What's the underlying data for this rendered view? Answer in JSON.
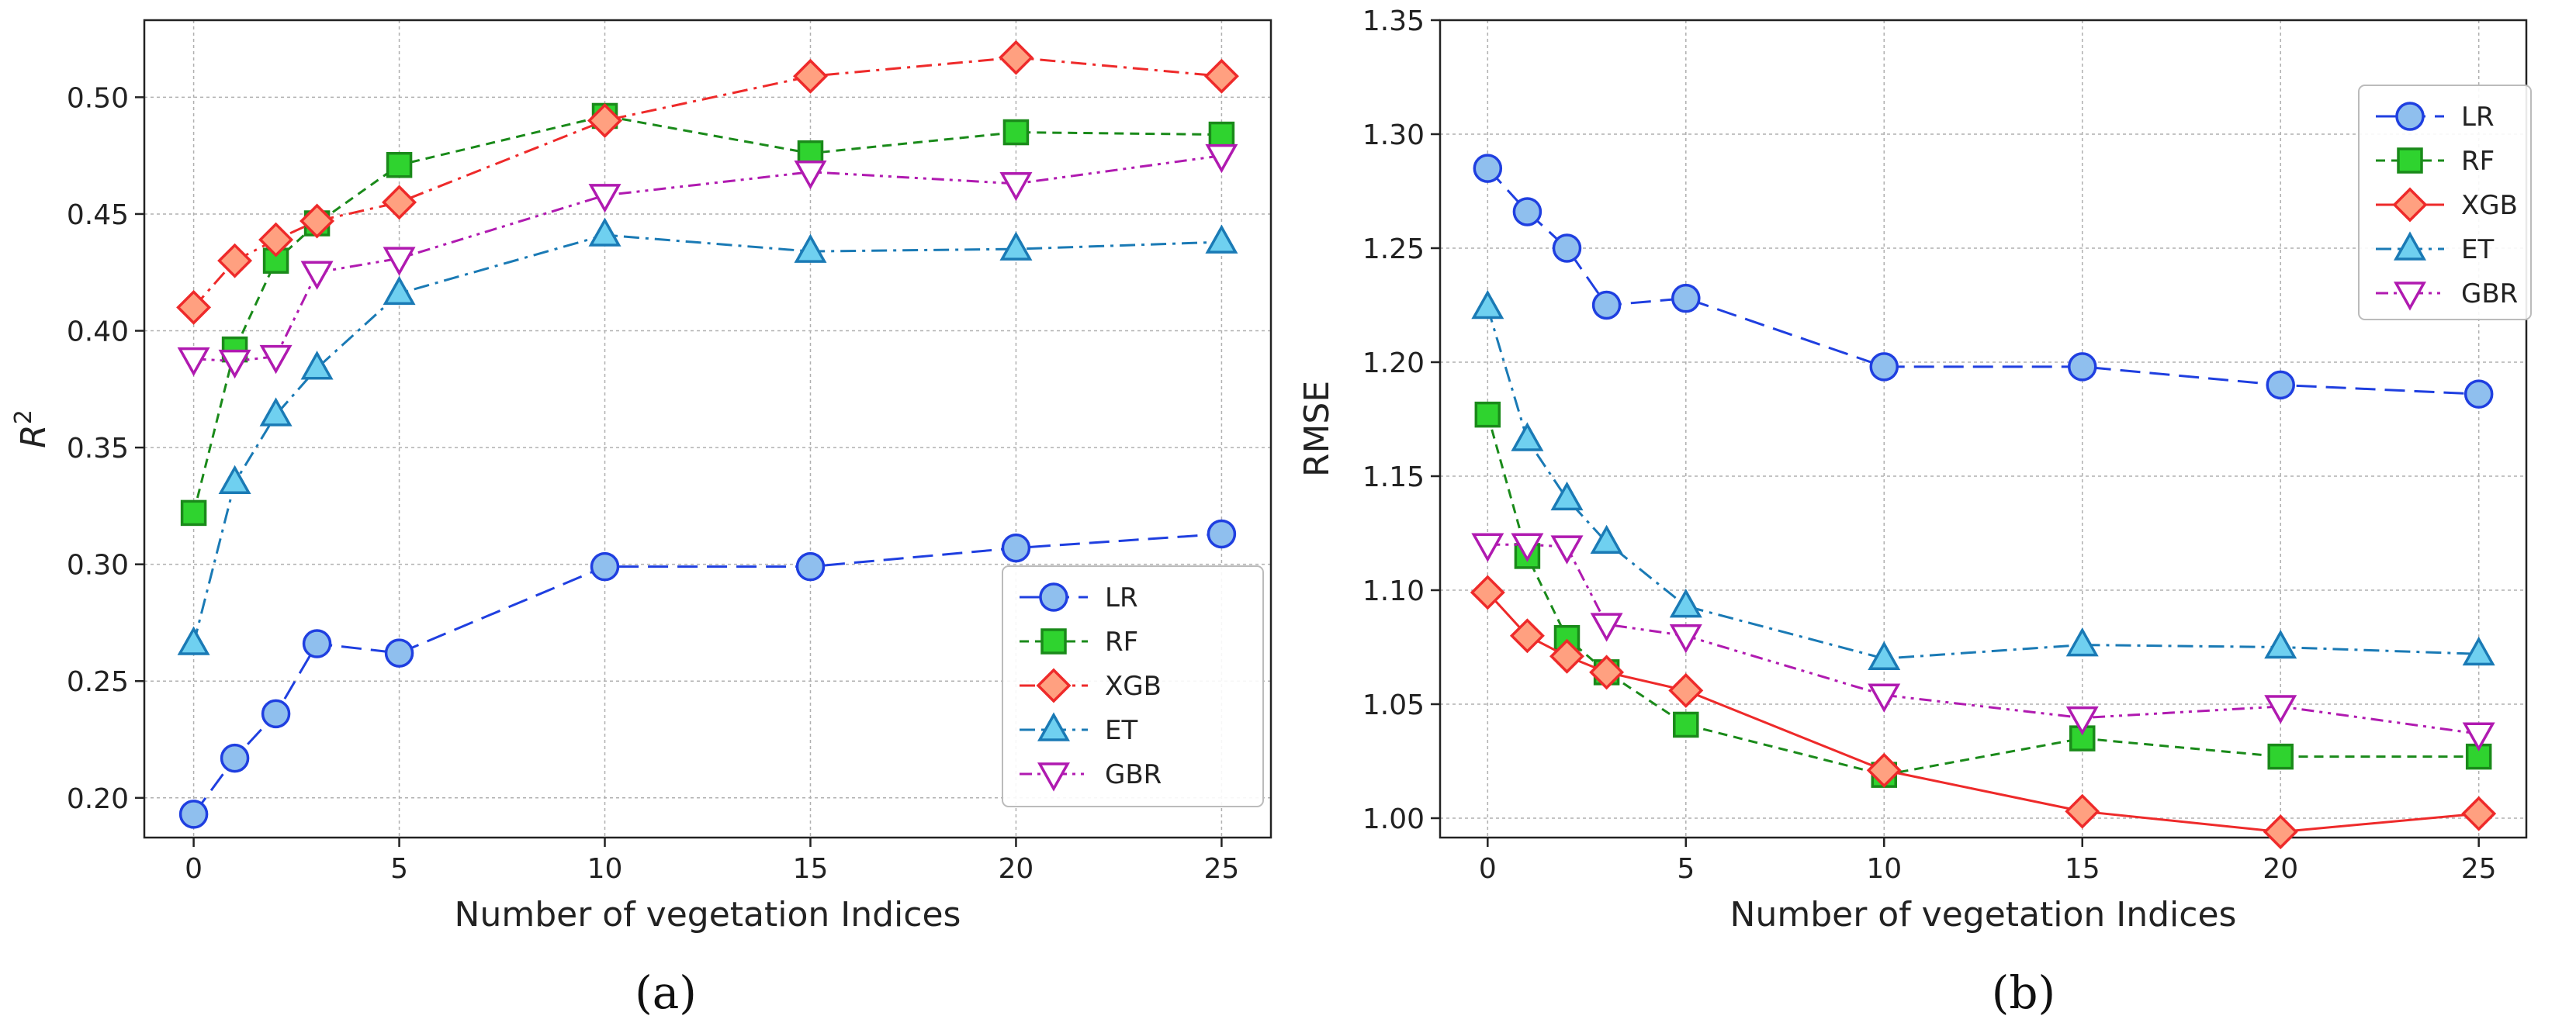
{
  "chart_data": [
    {
      "type": "line",
      "panel_label": "(a)",
      "xlabel": "Number of vegetation Indices",
      "ylabel": "R",
      "ylabel_superscript": "2",
      "x": [
        0,
        1,
        2,
        3,
        5,
        10,
        15,
        20,
        25
      ],
      "xticks": [
        "0",
        "5",
        "10",
        "15",
        "20",
        "25"
      ],
      "xlim": [
        -1.2,
        26.2
      ],
      "yticks": [
        "0.20",
        "0.25",
        "0.30",
        "0.35",
        "0.40",
        "0.45",
        "0.50"
      ],
      "ylim": [
        0.183,
        0.533
      ],
      "grid": true,
      "legend_position": "lower-right",
      "series": [
        {
          "name": "LR",
          "marker": "circle",
          "color": "#1f3fe0",
          "fill": "#8fbfee",
          "dash": "long-dash",
          "values": [
            0.193,
            0.217,
            0.236,
            0.266,
            0.262,
            0.299,
            0.299,
            0.307,
            0.313
          ]
        },
        {
          "name": "RF",
          "marker": "square",
          "color": "#1a8a1a",
          "fill": "#2fd32f",
          "dash": "dashed",
          "values": [
            0.322,
            0.392,
            0.43,
            0.446,
            0.471,
            0.492,
            0.476,
            0.485,
            0.484
          ]
        },
        {
          "name": "XGB",
          "marker": "diamond",
          "color": "#ee2a2a",
          "fill": "#ffa080",
          "dash": "dash-dot",
          "values": [
            0.41,
            0.43,
            0.439,
            0.447,
            0.455,
            0.49,
            0.509,
            0.517,
            0.509
          ]
        },
        {
          "name": "ET",
          "marker": "triangle-up",
          "color": "#1a7ab5",
          "fill": "#6fd0f0",
          "dash": "dash-dot",
          "values": [
            0.266,
            0.335,
            0.364,
            0.384,
            0.416,
            0.441,
            0.434,
            0.435,
            0.438
          ]
        },
        {
          "name": "GBR",
          "marker": "triangle-down",
          "color": "#b01ab0",
          "fill": "#ffffff",
          "dash": "dash-dot-dot",
          "values": [
            0.388,
            0.387,
            0.389,
            0.425,
            0.431,
            0.458,
            0.468,
            0.463,
            0.475
          ]
        }
      ]
    },
    {
      "type": "line",
      "panel_label": "(b)",
      "xlabel": "Number of vegetation Indices",
      "ylabel": "RMSE",
      "x": [
        0,
        1,
        2,
        3,
        5,
        10,
        15,
        20,
        25
      ],
      "xticks": [
        "0",
        "5",
        "10",
        "15",
        "20",
        "25"
      ],
      "xlim": [
        -1.2,
        26.2
      ],
      "yticks": [
        "1.00",
        "1.05",
        "1.10",
        "1.15",
        "1.20",
        "1.25",
        "1.30",
        "1.35"
      ],
      "ylim": [
        0.9915,
        1.35
      ],
      "grid": true,
      "legend_position": "upper-right",
      "series": [
        {
          "name": "LR",
          "marker": "circle",
          "color": "#1f3fe0",
          "fill": "#8fbfee",
          "dash": "long-dash",
          "values": [
            1.285,
            1.266,
            1.25,
            1.225,
            1.228,
            1.198,
            1.198,
            1.19,
            1.186
          ]
        },
        {
          "name": "RF",
          "marker": "square",
          "color": "#1a8a1a",
          "fill": "#2fd32f",
          "dash": "dashed",
          "values": [
            1.177,
            1.115,
            1.079,
            1.064,
            1.041,
            1.019,
            1.035,
            1.027,
            1.027
          ]
        },
        {
          "name": "XGB",
          "marker": "diamond",
          "color": "#ee2a2a",
          "fill": "#ffa080",
          "dash": "solid",
          "values": [
            1.099,
            1.08,
            1.071,
            1.064,
            1.056,
            1.021,
            1.003,
            0.994,
            1.002
          ]
        },
        {
          "name": "ET",
          "marker": "triangle-up",
          "color": "#1a7ab5",
          "fill": "#6fd0f0",
          "dash": "dash-dot",
          "values": [
            1.224,
            1.166,
            1.14,
            1.121,
            1.093,
            1.07,
            1.076,
            1.075,
            1.072
          ]
        },
        {
          "name": "GBR",
          "marker": "triangle-down",
          "color": "#b01ab0",
          "fill": "#ffffff",
          "dash": "dash-dot-dot",
          "values": [
            1.12,
            1.12,
            1.119,
            1.085,
            1.08,
            1.054,
            1.044,
            1.049,
            1.037
          ]
        }
      ]
    }
  ]
}
